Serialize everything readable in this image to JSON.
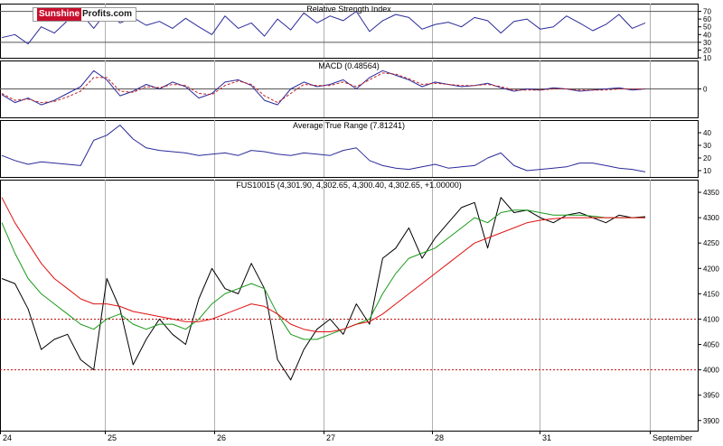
{
  "logo": {
    "part1": "Sunshine",
    "part2": "Profits.com"
  },
  "colors": {
    "price": "#000000",
    "sma_fast": "#1a9a1a",
    "sma_slow": "#e01010",
    "indicator": "#2a2a9a",
    "signal": "#c02020",
    "level": "#c01010"
  },
  "chart_data": [
    {
      "type": "line",
      "title": "Relative Strength Index",
      "ylim": [
        10,
        80
      ],
      "yticks": [
        10,
        20,
        30,
        40,
        50,
        60,
        70
      ],
      "yticks_text": [
        "10",
        "20",
        "30",
        "40",
        "50",
        "60",
        "70"
      ],
      "reference_lines": [
        30,
        70
      ],
      "series": [
        {
          "values": [
            36,
            40,
            28,
            50,
            42,
            58,
            68,
            48,
            70,
            55,
            62,
            52,
            57,
            48,
            61,
            50,
            40,
            64,
            48,
            55,
            38,
            60,
            46,
            68,
            55,
            64,
            58,
            70,
            44,
            58,
            66,
            62,
            47,
            53,
            56,
            50,
            62,
            58,
            42,
            57,
            60,
            47,
            50,
            64,
            55,
            45,
            53,
            66,
            48,
            55
          ]
        }
      ]
    },
    {
      "type": "line",
      "title": "MACD (0.48564)",
      "ylim": [
        -25,
        25
      ],
      "yticks": [
        0
      ],
      "yticks_text": [
        "0"
      ],
      "reference_lines": [
        0
      ],
      "series": [
        {
          "values": [
            -5,
            -12,
            -8,
            -14,
            -10,
            -4,
            2,
            16,
            8,
            -6,
            -2,
            4,
            0,
            6,
            2,
            -8,
            -4,
            6,
            8,
            3,
            -10,
            -14,
            0,
            6,
            2,
            4,
            8,
            0,
            10,
            16,
            12,
            8,
            2,
            6,
            4,
            2,
            3,
            5,
            1,
            -2,
            0,
            -1,
            1,
            0,
            -2,
            -1,
            0,
            1,
            -1,
            0
          ]
        },
        {
          "values": [
            -4,
            -10,
            -9,
            -12,
            -11,
            -7,
            -2,
            10,
            10,
            -2,
            -3,
            2,
            1,
            4,
            3,
            -4,
            -5,
            3,
            7,
            4,
            -6,
            -12,
            -4,
            4,
            3,
            3,
            6,
            2,
            8,
            14,
            13,
            9,
            4,
            5,
            4,
            3,
            3,
            4,
            2,
            -1,
            -1,
            -1,
            0,
            0,
            -1,
            -1,
            -1,
            0,
            0,
            0
          ]
        }
      ]
    },
    {
      "type": "line",
      "title": "Average True Range (7.81241)",
      "ylim": [
        5,
        50
      ],
      "yticks": [
        10,
        20,
        30,
        40
      ],
      "yticks_text": [
        "10",
        "20",
        "30",
        "40"
      ],
      "series": [
        {
          "values": [
            22,
            18,
            15,
            17,
            16,
            15,
            14,
            34,
            38,
            46,
            35,
            28,
            26,
            25,
            24,
            22,
            23,
            24,
            22,
            26,
            25,
            23,
            22,
            24,
            23,
            22,
            26,
            28,
            18,
            14,
            12,
            11,
            13,
            15,
            12,
            13,
            14,
            20,
            24,
            14,
            10,
            11,
            12,
            13,
            16,
            16,
            14,
            12,
            11,
            9
          ]
        }
      ]
    },
    {
      "type": "line",
      "title": "FUS10015 (4,301.90, 4,302.65, 4,300.40, 4,302.65, +1.00000)",
      "ylim": [
        3880,
        4375
      ],
      "yticks": [
        3900,
        3950,
        4000,
        4050,
        4100,
        4150,
        4200,
        4250,
        4300,
        4350
      ],
      "yticks_text": [
        "3900",
        "3950",
        "4000",
        "4050",
        "4100",
        "4150",
        "4200",
        "4250",
        "4300",
        "4350"
      ],
      "reference_lines": [
        4100,
        4000
      ],
      "x_tick_labels": [
        "24",
        "25",
        "26",
        "27",
        "28",
        "31",
        "September"
      ],
      "series": [
        {
          "values": [
            4180,
            4170,
            4120,
            4040,
            4060,
            4070,
            4020,
            4000,
            4180,
            4120,
            4010,
            4060,
            4100,
            4070,
            4050,
            4140,
            4200,
            4160,
            4150,
            4210,
            4160,
            4020,
            3980,
            4040,
            4080,
            4100,
            4070,
            4130,
            4090,
            4220,
            4240,
            4280,
            4220,
            4260,
            4290,
            4320,
            4330,
            4240,
            4340,
            4310,
            4315,
            4300,
            4290,
            4305,
            4310,
            4300,
            4290,
            4305,
            4300,
            4302
          ]
        },
        {
          "values": [
            4290,
            4230,
            4180,
            4150,
            4130,
            4110,
            4090,
            4080,
            4100,
            4110,
            4090,
            4080,
            4090,
            4090,
            4080,
            4100,
            4130,
            4150,
            4160,
            4170,
            4160,
            4110,
            4070,
            4060,
            4060,
            4070,
            4080,
            4090,
            4100,
            4150,
            4190,
            4220,
            4230,
            4240,
            4260,
            4280,
            4300,
            4290,
            4310,
            4315,
            4315,
            4310,
            4305,
            4305,
            4305,
            4303,
            4300,
            4300,
            4300,
            4300
          ]
        },
        {
          "values": [
            4340,
            4290,
            4250,
            4210,
            4180,
            4160,
            4140,
            4130,
            4130,
            4125,
            4115,
            4110,
            4105,
            4100,
            4095,
            4095,
            4100,
            4110,
            4120,
            4130,
            4125,
            4110,
            4090,
            4080,
            4075,
            4075,
            4080,
            4090,
            4095,
            4110,
            4130,
            4150,
            4170,
            4190,
            4210,
            4230,
            4250,
            4260,
            4270,
            4280,
            4290,
            4295,
            4298,
            4300,
            4300,
            4300,
            4300,
            4300,
            4300,
            4300
          ]
        }
      ]
    }
  ]
}
